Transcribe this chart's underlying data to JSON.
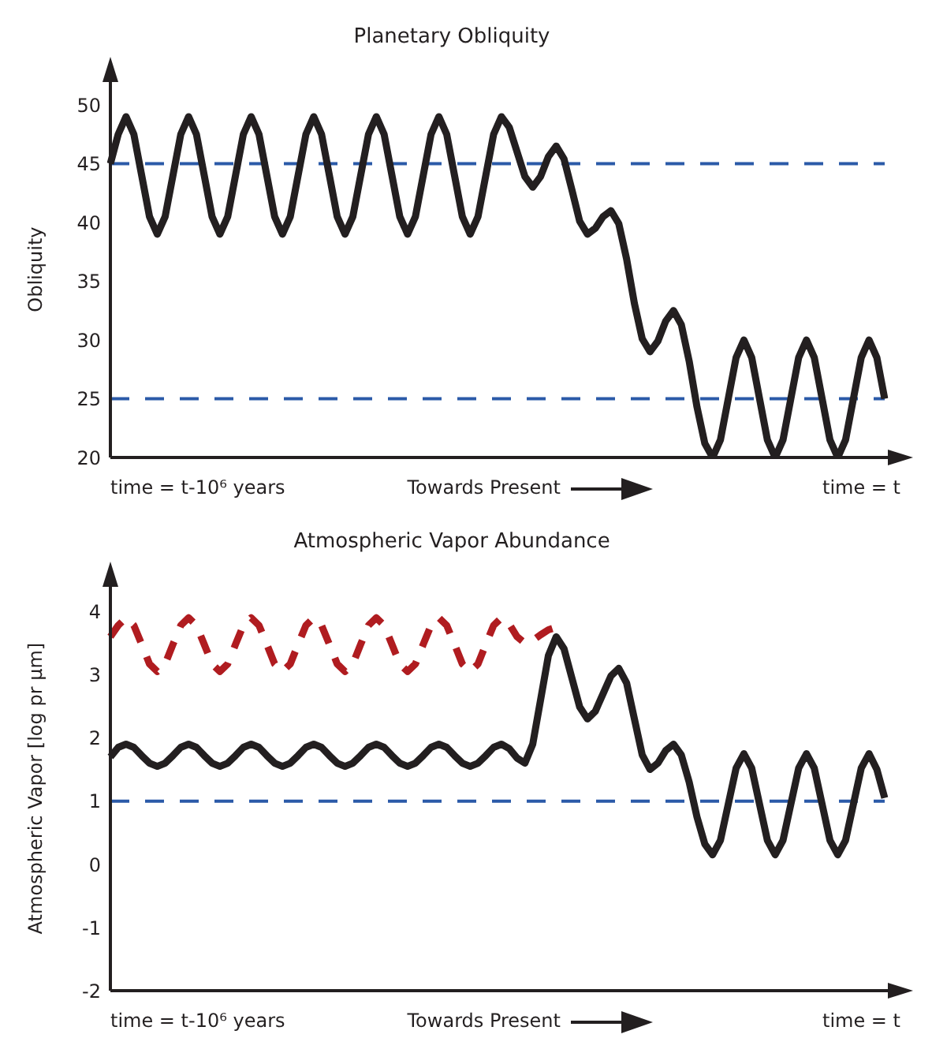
{
  "chart_data": [
    {
      "type": "line",
      "title": "Planetary Obliquity",
      "ylabel": "Obliquity",
      "ylim": [
        20,
        52
      ],
      "yticks": [
        20,
        25,
        30,
        35,
        40,
        45,
        50
      ],
      "tick_labels": "y",
      "grid": false,
      "legend": false,
      "marker": "none",
      "line_style": "solid",
      "categories": [
        null,
        null,
        null,
        null,
        null,
        null,
        null,
        null,
        null,
        null,
        null,
        null,
        null,
        null,
        null,
        null,
        null,
        null,
        null,
        null,
        null,
        null,
        null,
        null,
        null,
        null,
        null,
        null,
        null,
        null,
        null,
        null,
        null,
        null,
        null,
        null,
        null,
        null,
        null,
        null,
        null,
        null,
        null,
        null,
        null,
        null,
        null,
        null,
        null,
        null,
        null,
        null,
        null,
        null,
        null,
        null,
        null,
        null,
        null,
        null,
        null,
        null,
        null,
        null,
        null,
        null,
        null,
        null,
        null,
        null,
        null,
        null,
        null,
        null,
        null,
        null,
        null,
        null,
        null,
        null,
        null,
        null,
        null,
        null,
        null,
        null,
        null,
        null,
        null,
        null,
        null,
        null,
        null,
        null,
        null,
        null,
        null,
        null,
        null,
        null
      ],
      "series": [
        {
          "color": "#231f20",
          "values": [
            45,
            47.5,
            49,
            47.5,
            44,
            40.5,
            39,
            40.5,
            44,
            47.5,
            49,
            47.5,
            44,
            40.5,
            39,
            40.5,
            44,
            47.5,
            49,
            47.5,
            44,
            40.5,
            39,
            40.5,
            44,
            47.5,
            49,
            47.5,
            44,
            40.5,
            39,
            40.5,
            44,
            47.5,
            49,
            47.5,
            44,
            40.5,
            39,
            40.5,
            44,
            47.5,
            49,
            47.5,
            44,
            40.5,
            39,
            40.5,
            44,
            47.5,
            49,
            48.1,
            46,
            43.9,
            43,
            43.9,
            45.6,
            46.5,
            45.4,
            42.8,
            40.1,
            39,
            39.5,
            40.5,
            41,
            39.9,
            36.9,
            33.1,
            30.1,
            29,
            29.9,
            31.6,
            32.5,
            31.3,
            28.2,
            24.3,
            21.2,
            20,
            21.5,
            25,
            28.5,
            30,
            28.5,
            25,
            21.5,
            20,
            21.5,
            25,
            28.5,
            30,
            28.5,
            25,
            21.5,
            20,
            21.5,
            25,
            28.5,
            30,
            28.5,
            25
          ]
        }
      ],
      "ref_lines": [
        {
          "axis": "y",
          "value": 45,
          "color": "#2b5aa8",
          "line_style": "dashed"
        },
        {
          "axis": "y",
          "value": 25,
          "color": "#2b5aa8",
          "line_style": "dashed"
        }
      ],
      "annotations": [
        "time = t-10⁶ years",
        "Towards Present",
        "time = t"
      ]
    },
    {
      "type": "line",
      "title": "Atmospheric Vapor Abundance",
      "ylabel": "Atmospheric Vapor [log pr μm]",
      "ylim": [
        -2,
        4.4
      ],
      "yticks": [
        -2,
        -1,
        0,
        1,
        2,
        3,
        4
      ],
      "tick_labels": "y",
      "grid": false,
      "legend": false,
      "marker": "none",
      "line_style": "solid",
      "categories": [
        null,
        null,
        null,
        null,
        null,
        null,
        null,
        null,
        null,
        null,
        null,
        null,
        null,
        null,
        null,
        null,
        null,
        null,
        null,
        null,
        null,
        null,
        null,
        null,
        null,
        null,
        null,
        null,
        null,
        null,
        null,
        null,
        null,
        null,
        null,
        null,
        null,
        null,
        null,
        null,
        null,
        null,
        null,
        null,
        null,
        null,
        null,
        null,
        null,
        null,
        null,
        null,
        null,
        null,
        null,
        null,
        null,
        null,
        null,
        null,
        null,
        null,
        null,
        null,
        null,
        null,
        null,
        null,
        null,
        null,
        null,
        null,
        null,
        null,
        null,
        null,
        null,
        null,
        null,
        null,
        null,
        null,
        null,
        null,
        null,
        null,
        null,
        null,
        null,
        null,
        null,
        null,
        null,
        null,
        null,
        null,
        null,
        null,
        null,
        null
      ],
      "series": [
        {
          "color": "#231f20",
          "values": [
            1.7,
            1.85,
            1.9,
            1.85,
            1.72,
            1.6,
            1.55,
            1.6,
            1.72,
            1.85,
            1.9,
            1.85,
            1.72,
            1.6,
            1.55,
            1.6,
            1.72,
            1.85,
            1.9,
            1.85,
            1.72,
            1.6,
            1.55,
            1.6,
            1.72,
            1.85,
            1.9,
            1.85,
            1.72,
            1.6,
            1.55,
            1.6,
            1.72,
            1.85,
            1.9,
            1.85,
            1.72,
            1.6,
            1.55,
            1.6,
            1.72,
            1.85,
            1.9,
            1.85,
            1.72,
            1.6,
            1.55,
            1.6,
            1.72,
            1.85,
            1.9,
            1.83,
            1.68,
            1.6,
            1.9,
            2.6,
            3.3,
            3.6,
            3.41,
            2.95,
            2.49,
            2.3,
            2.42,
            2.7,
            2.98,
            3.1,
            2.87,
            2.3,
            1.73,
            1.5,
            1.6,
            1.8,
            1.9,
            1.73,
            1.3,
            0.75,
            0.32,
            0.15,
            0.38,
            0.95,
            1.52,
            1.75,
            1.52,
            0.95,
            0.38,
            0.15,
            0.38,
            0.95,
            1.52,
            1.75,
            1.52,
            0.95,
            0.38,
            0.15,
            0.38,
            0.95,
            1.52,
            1.75,
            1.5,
            1.05
          ]
        },
        {
          "color": "#b01c20",
          "line_style": "dashed",
          "values": [
            3.6,
            3.78,
            3.9,
            3.78,
            3.48,
            3.17,
            3.05,
            3.17,
            3.48,
            3.78,
            3.9,
            3.78,
            3.48,
            3.17,
            3.05,
            3.17,
            3.48,
            3.78,
            3.9,
            3.78,
            3.48,
            3.17,
            3.05,
            3.17,
            3.48,
            3.78,
            3.9,
            3.78,
            3.48,
            3.17,
            3.05,
            3.17,
            3.48,
            3.78,
            3.9,
            3.78,
            3.48,
            3.17,
            3.05,
            3.17,
            3.48,
            3.78,
            3.9,
            3.78,
            3.48,
            3.17,
            3.05,
            3.17,
            3.48,
            3.78,
            3.9,
            3.8,
            3.6,
            3.5,
            3.54,
            3.63,
            3.71,
            3.75,
            null,
            null,
            null,
            null,
            null,
            null,
            null,
            null,
            null,
            null,
            null,
            null,
            null,
            null,
            null,
            null,
            null,
            null,
            null,
            null,
            null,
            null,
            null,
            null,
            null,
            null,
            null,
            null,
            null,
            null,
            null,
            null,
            null,
            null,
            null,
            null,
            null,
            null,
            null,
            null,
            null,
            null
          ]
        }
      ],
      "ref_lines": [
        {
          "axis": "y",
          "value": 1,
          "color": "#2b5aa8",
          "line_style": "dashed"
        }
      ],
      "annotations": [
        "time = t-10⁶ years",
        "Towards Present",
        "time = t"
      ]
    }
  ]
}
